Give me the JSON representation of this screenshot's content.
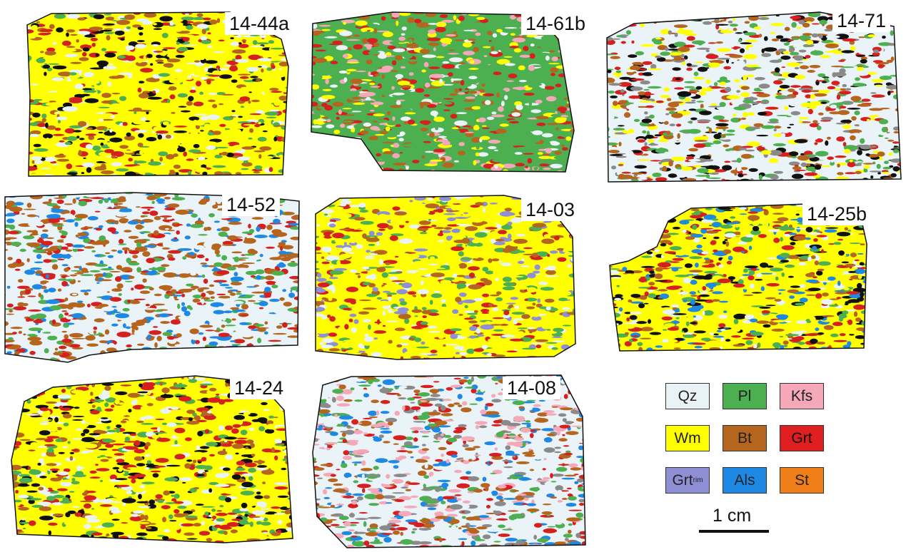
{
  "samples": [
    {
      "label": "14-44a",
      "palette": [
        "#FFFF00",
        "#FFFF00",
        "#FFFF00",
        "#B5651D",
        "#4CAF50",
        "#EAF3F7",
        "#D62020",
        "#111111"
      ]
    },
    {
      "label": "14-61b",
      "palette": [
        "#4CAF50",
        "#4CAF50",
        "#4CAF50",
        "#EAF3F7",
        "#B5651D",
        "#FFFF00",
        "#D62020",
        "#F4A8B8"
      ]
    },
    {
      "label": "14-71",
      "palette": [
        "#EAF3F7",
        "#EAF3F7",
        "#8A8A8A",
        "#FFFF00",
        "#B5651D",
        "#D62020",
        "#4CAF50",
        "#111111"
      ]
    },
    {
      "label": "14-52",
      "palette": [
        "#EAF3F7",
        "#EAF3F7",
        "#B5651D",
        "#B5651D",
        "#4CAF50",
        "#D62020",
        "#1E88E5"
      ]
    },
    {
      "label": "14-03",
      "palette": [
        "#FFFF00",
        "#FFFF00",
        "#FFFF00",
        "#EAF3F7",
        "#8F8FD6",
        "#B5651D",
        "#4CAF50",
        "#D62020"
      ]
    },
    {
      "label": "14-25b",
      "palette": [
        "#FFFF00",
        "#FFFF00",
        "#EAF3F7",
        "#D62020",
        "#B5651D",
        "#1E88E5",
        "#4CAF50",
        "#111111"
      ]
    },
    {
      "label": "14-24",
      "palette": [
        "#FFFF00",
        "#FFFF00",
        "#EAF3F7",
        "#D62020",
        "#4CAF50",
        "#B5651D",
        "#111111"
      ]
    },
    {
      "label": "14-08",
      "palette": [
        "#EAF3F7",
        "#EAF3F7",
        "#F4A8B8",
        "#4CAF50",
        "#B5651D",
        "#1E88E5",
        "#8A8A8A",
        "#D62020"
      ]
    }
  ],
  "legend": {
    "items": [
      {
        "label": "Qz",
        "color": "#E9F3F6"
      },
      {
        "label": "Pl",
        "color": "#4CAF50"
      },
      {
        "label": "Kfs",
        "color": "#F4A8B8"
      },
      {
        "label": "Wm",
        "color": "#FFFF00"
      },
      {
        "label": "Bt",
        "color": "#B5651D"
      },
      {
        "label": "Grt",
        "color": "#E02020"
      },
      {
        "label": "Grt",
        "sub": "rim",
        "color": "#8F8FD6"
      },
      {
        "label": "Als",
        "color": "#1E88E5"
      },
      {
        "label": "St",
        "color": "#F07F1A"
      }
    ],
    "scale_label": "1 cm"
  }
}
